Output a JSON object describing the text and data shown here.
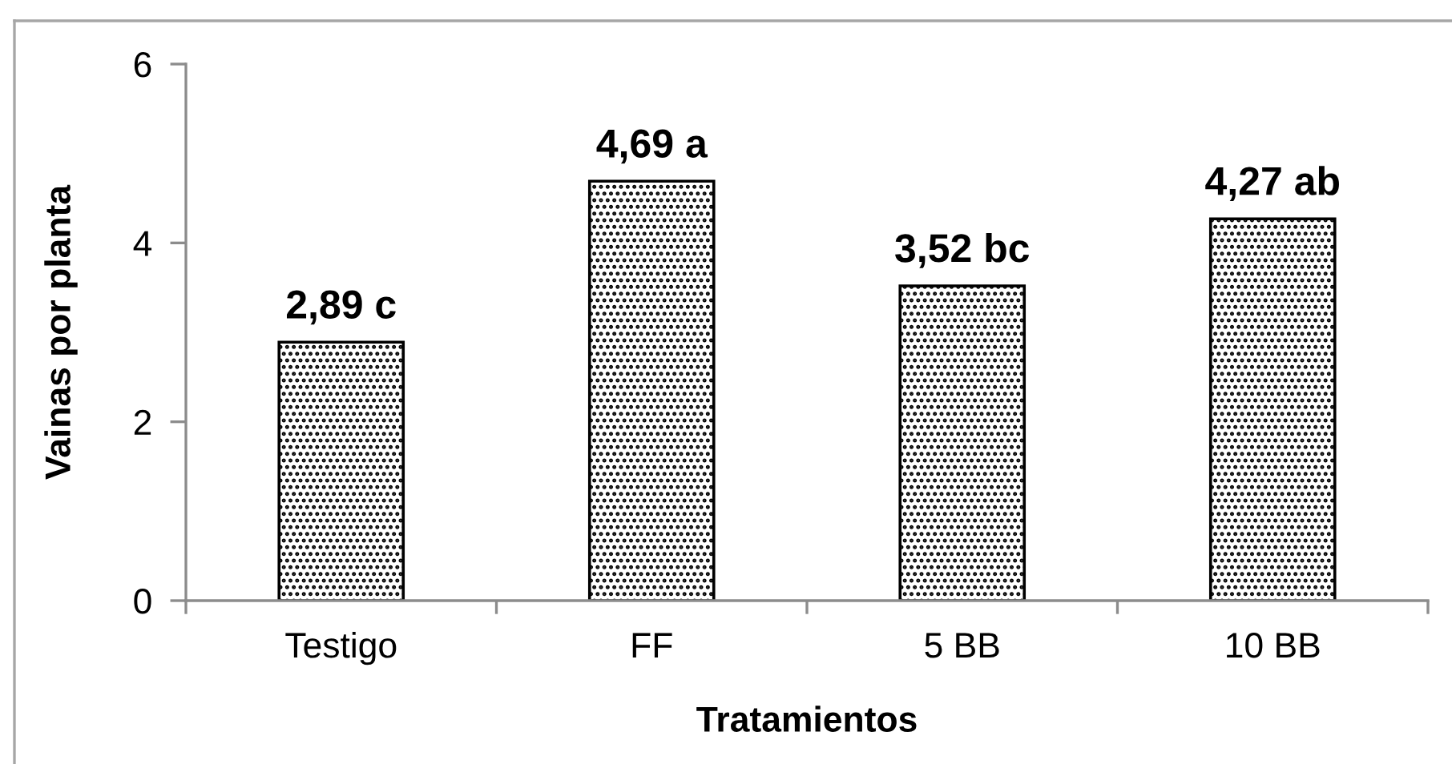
{
  "chart_data": {
    "type": "bar",
    "xlabel": "Tratamientos",
    "ylabel": "Vainas por planta",
    "categories": [
      "Testigo",
      "FF",
      "5 BB",
      "10 BB"
    ],
    "values": [
      2.89,
      4.69,
      3.52,
      4.27
    ],
    "value_labels": [
      "2,89 c",
      "4,69 a",
      "3,52 bc",
      "4,27 ab"
    ],
    "color": "#000000",
    "ylim": [
      0,
      6
    ],
    "yticks": [
      0,
      2,
      4,
      6
    ],
    "grid": false,
    "legend": false
  }
}
